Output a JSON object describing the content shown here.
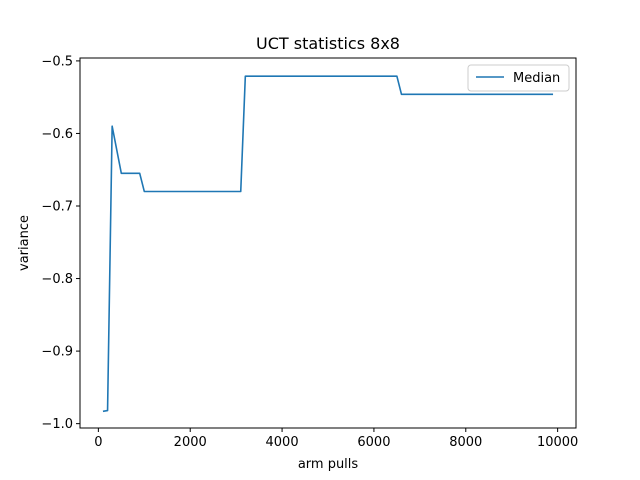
{
  "chart_data": {
    "type": "line",
    "title": "UCT statistics 8x8",
    "xlabel": "arm pulls",
    "ylabel": "variance",
    "xlim": [
      -400,
      10400
    ],
    "ylim": [
      -1.006,
      -0.496
    ],
    "xticks": [
      0,
      2000,
      4000,
      6000,
      8000,
      10000
    ],
    "xtick_labels": [
      "0",
      "2000",
      "4000",
      "6000",
      "8000",
      "10000"
    ],
    "yticks": [
      -1.0,
      -0.9,
      -0.8,
      -0.7,
      -0.6,
      -0.5
    ],
    "ytick_labels": [
      "−1.0",
      "−0.9",
      "−0.8",
      "−0.7",
      "−0.6",
      "−0.5"
    ],
    "grid": false,
    "legend_position": "upper right",
    "series": [
      {
        "name": "Median",
        "color": "#1f77b4",
        "x": [
          100,
          200,
          300,
          500,
          900,
          1000,
          1500,
          2500,
          3100,
          3200,
          4000,
          5000,
          6500,
          6600,
          7500,
          8500,
          9900
        ],
        "y": [
          -0.983,
          -0.982,
          -0.59,
          -0.655,
          -0.655,
          -0.68,
          -0.68,
          -0.68,
          -0.68,
          -0.521,
          -0.521,
          -0.521,
          -0.521,
          -0.546,
          -0.546,
          -0.546,
          -0.546
        ]
      }
    ]
  }
}
